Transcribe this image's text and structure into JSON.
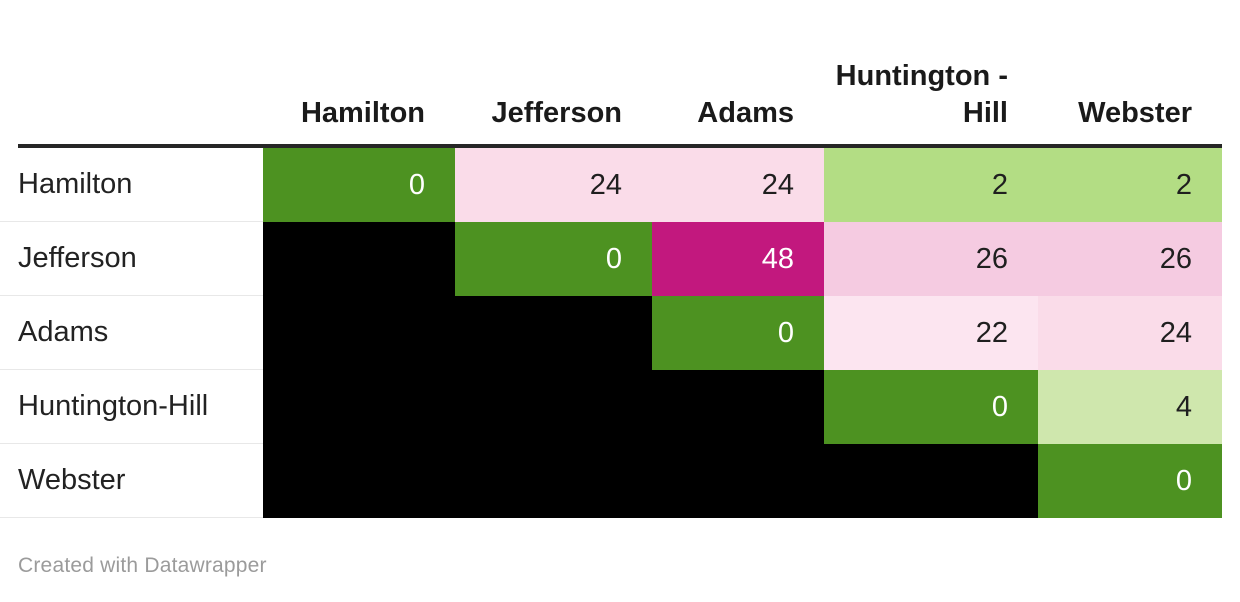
{
  "chart_data": {
    "type": "heatmap",
    "columns": [
      "Hamilton",
      "Jefferson",
      "Adams",
      "Huntington - Hill",
      "Webster"
    ],
    "row_labels": [
      "Hamilton",
      "Jefferson",
      "Adams",
      "Huntington-Hill",
      "Webster"
    ],
    "matrix": [
      [
        0,
        24,
        24,
        2,
        2
      ],
      [
        null,
        0,
        48,
        26,
        26
      ],
      [
        null,
        null,
        0,
        22,
        24
      ],
      [
        null,
        null,
        null,
        0,
        4
      ],
      [
        null,
        null,
        null,
        null,
        0
      ]
    ],
    "legend_position": "none",
    "color_map": {
      "0": {
        "bg": "#4d9221",
        "fg": "#ffffff"
      },
      "2": {
        "bg": "#b3dd84",
        "fg": "#1f1f1f"
      },
      "4": {
        "bg": "#cfe7ad",
        "fg": "#1f1f1f"
      },
      "22": {
        "bg": "#fce5f0",
        "fg": "#1f1f1f"
      },
      "24": {
        "bg": "#fadce9",
        "fg": "#1f1f1f"
      },
      "26": {
        "bg": "#f5cbe1",
        "fg": "#1f1f1f"
      },
      "48": {
        "bg": "#c2187e",
        "fg": "#ffffff"
      },
      "empty": {
        "bg": "#000000",
        "fg": "#000000"
      }
    }
  },
  "colors": {
    "header_rule": "#262626",
    "row_divider": "#e8e8e8",
    "header_text": "#1a1a1a",
    "label_text": "#222222",
    "footer_text": "#9b9b9b",
    "background": "#ffffff"
  },
  "footer": {
    "credit": "Created with Datawrapper"
  }
}
